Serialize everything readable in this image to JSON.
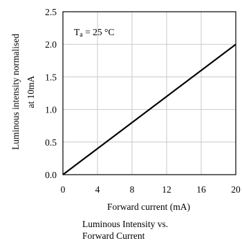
{
  "chart_data": {
    "type": "line",
    "xlabel": "Forward current (mA)",
    "ylabel_lines": [
      "Luminous intensity normalised",
      "at 10mA"
    ],
    "caption_lines": [
      "Luminous Intensity vs.",
      "Forward Current"
    ],
    "annotation": {
      "main": "T",
      "sub": "a",
      "rest": " = 25 °C"
    },
    "xlim": [
      0,
      20
    ],
    "ylim": [
      0,
      2.5
    ],
    "xticks": [
      0,
      4,
      8,
      12,
      16,
      20
    ],
    "xtick_labels": [
      "0",
      "4",
      "8",
      "12",
      "16",
      "20"
    ],
    "yticks": [
      0,
      0.5,
      1.0,
      1.5,
      2.0,
      2.5
    ],
    "ytick_labels": [
      "0.0",
      "0.5",
      "1.0",
      "1.5",
      "2.0",
      "2.5"
    ],
    "grid": true,
    "series": [
      {
        "x": [
          0,
          4,
          8,
          12,
          16,
          20
        ],
        "y": [
          0,
          0.4,
          0.8,
          1.2,
          1.6,
          2.0
        ]
      }
    ]
  }
}
